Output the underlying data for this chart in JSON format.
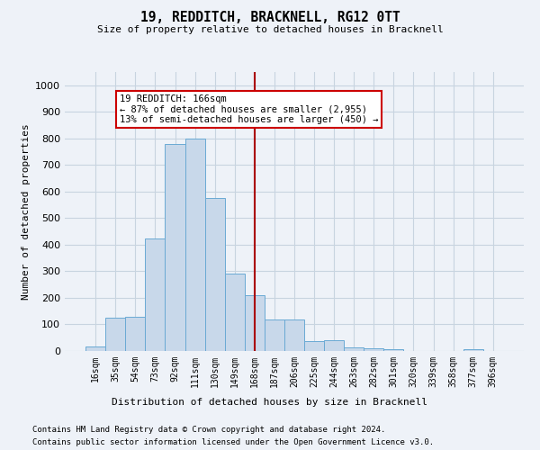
{
  "title": "19, REDDITCH, BRACKNELL, RG12 0TT",
  "subtitle": "Size of property relative to detached houses in Bracknell",
  "xlabel_bottom": "Distribution of detached houses by size in Bracknell",
  "ylabel": "Number of detached properties",
  "footnote1": "Contains HM Land Registry data © Crown copyright and database right 2024.",
  "footnote2": "Contains public sector information licensed under the Open Government Licence v3.0.",
  "categories": [
    "16sqm",
    "35sqm",
    "54sqm",
    "73sqm",
    "92sqm",
    "111sqm",
    "130sqm",
    "149sqm",
    "168sqm",
    "187sqm",
    "206sqm",
    "225sqm",
    "244sqm",
    "263sqm",
    "282sqm",
    "301sqm",
    "320sqm",
    "339sqm",
    "358sqm",
    "377sqm",
    "396sqm"
  ],
  "values": [
    18,
    127,
    128,
    425,
    778,
    800,
    575,
    290,
    210,
    120,
    120,
    38,
    40,
    12,
    10,
    8,
    0,
    0,
    0,
    8,
    0
  ],
  "bar_color": "#c8d8ea",
  "bar_edge_color": "#6aaad4",
  "grid_color": "#c8d4e0",
  "background_color": "#eef2f8",
  "vline_x_index": 8,
  "vline_color": "#aa0000",
  "annotation_text": "19 REDDITCH: 166sqm\n← 87% of detached houses are smaller (2,955)\n13% of semi-detached houses are larger (450) →",
  "annotation_box_edgecolor": "#cc0000",
  "ylim": [
    0,
    1050
  ],
  "yticks": [
    0,
    100,
    200,
    300,
    400,
    500,
    600,
    700,
    800,
    900,
    1000
  ]
}
